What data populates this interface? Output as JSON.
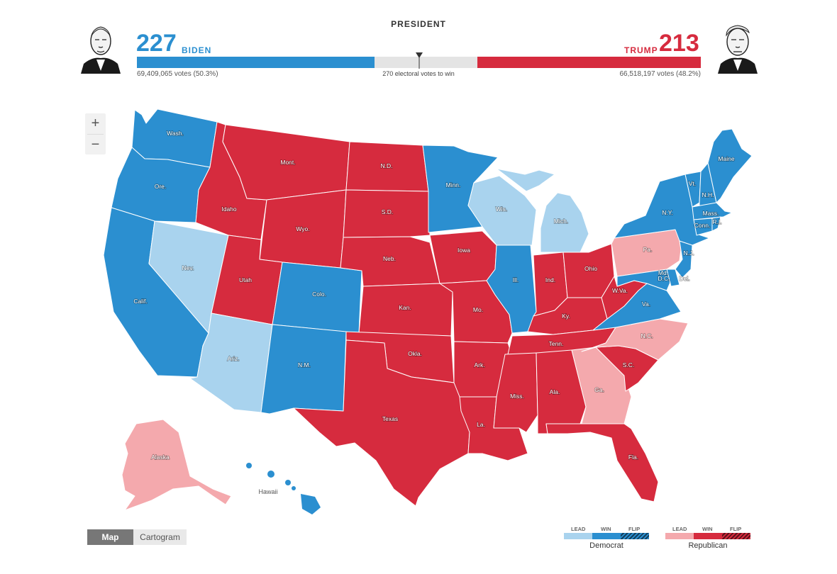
{
  "header": {
    "title": "PRESIDENT",
    "win_note": "270 electoral votes to win"
  },
  "biden": {
    "ev": "227",
    "name": "BIDEN",
    "votes": "69,409,065 votes (50.3%)",
    "color": "#2b8fd0",
    "ev_value": 227
  },
  "trump": {
    "ev": "213",
    "name": "TRUMP",
    "votes": "66,518,197 votes (48.2%)",
    "color": "#d62b3e",
    "ev_value": 213
  },
  "progress": {
    "total_ev": 538,
    "threshold": 270
  },
  "zoom": {
    "in": "+",
    "out": "−"
  },
  "view_toggle": {
    "map": "Map",
    "cartogram": "Cartogram",
    "selected": "Map"
  },
  "legend": {
    "lead": "LEAD",
    "win": "WIN",
    "flip": "FLIP",
    "democrat": "Democrat",
    "republican": "Republican",
    "colors": {
      "dem_lead": "#a9d3ee",
      "dem_win": "#2b8fd0",
      "rep_lead": "#f4a9ad",
      "rep_win": "#d62b3e"
    }
  },
  "states": {
    "wa": "Wash.",
    "or": "Ore.",
    "ca": "Calif.",
    "nv": "Nev.",
    "id": "Idaho",
    "mt": "Mont.",
    "wy": "Wyo.",
    "ut": "Utah",
    "az": "Ariz.",
    "co": "Colo.",
    "nm": "N.M.",
    "nd": "N.D.",
    "sd": "S.D.",
    "ne": "Neb.",
    "ks": "Kan.",
    "ok": "Okla.",
    "tx": "Texas",
    "mn": "Minn.",
    "ia": "Iowa",
    "mo": "Mo.",
    "ar": "Ark.",
    "la": "La.",
    "wi": "Wis.",
    "il": "Ill.",
    "mi": "Mich.",
    "in": "Ind.",
    "oh": "Ohio",
    "ky": "Ky.",
    "tn": "Tenn.",
    "ms": "Miss.",
    "al": "Ala.",
    "ga": "Ga.",
    "fl": "Fla.",
    "sc": "S.C.",
    "nc": "N.C.",
    "va": "Va.",
    "wv": "W.Va.",
    "pa": "Pa.",
    "ny": "N.Y.",
    "me": "Maine",
    "vt": "Vt.",
    "nh": "N.H.",
    "ma": "Mass.",
    "ri": "R.I.",
    "ct": "Conn.",
    "nj": "N.J.",
    "de": "Del.",
    "md": "Md.",
    "dc": "D.C.",
    "ak": "Alaska",
    "hi": "Hawaii"
  }
}
